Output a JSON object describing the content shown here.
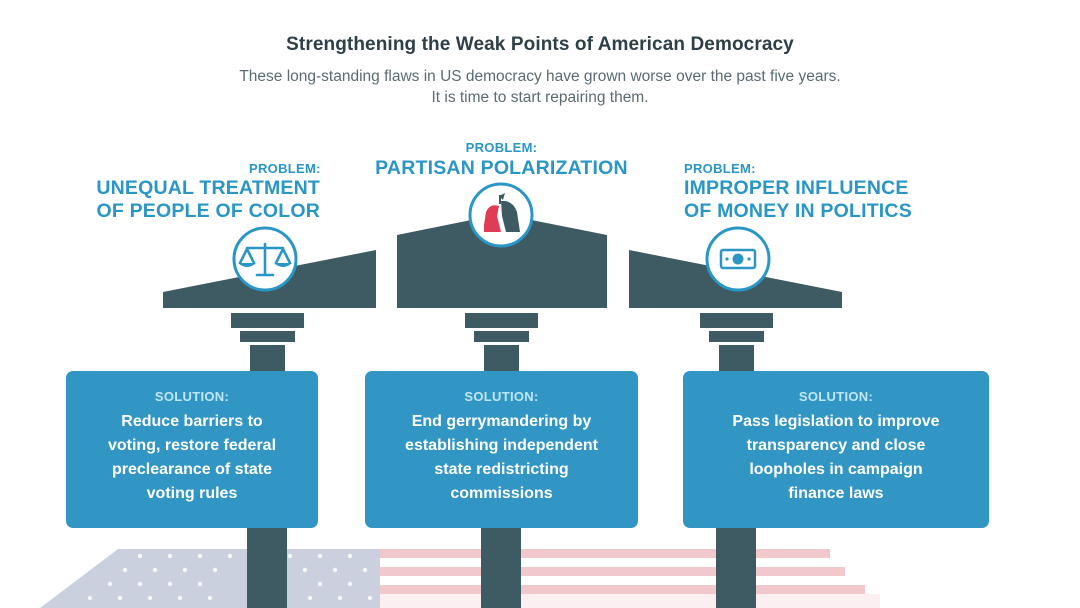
{
  "header": {
    "title": "Strengthening the Weak Points of American Democracy",
    "subtitle_lines": [
      "These long-standing flaws in US democracy have grown worse over the past five years.",
      "It is time to start repairing them."
    ]
  },
  "columns": [
    {
      "problem_label": "PROBLEM:",
      "problem_title_lines": [
        "UNEQUAL TREATMENT",
        "OF PEOPLE OF COLOR"
      ],
      "icon": "scales-of-justice-icon",
      "solution_label": "SOLUTION:",
      "solution_lines": [
        "Reduce barriers to",
        "voting, restore federal",
        "preclearance of state",
        "voting rules"
      ]
    },
    {
      "problem_label": "PROBLEM:",
      "problem_title_lines": [
        "PARTISAN POLARIZATION"
      ],
      "icon": "divided-elephant-donkey-icon",
      "solution_label": "SOLUTION:",
      "solution_lines": [
        "End gerrymandering by",
        "establishing independent",
        "state redistricting",
        "commissions"
      ]
    },
    {
      "problem_label": "PROBLEM:",
      "problem_title_lines": [
        "IMPROPER INFLUENCE",
        "OF MONEY IN POLITICS"
      ],
      "icon": "dollar-bill-icon",
      "solution_label": "SOLUTION:",
      "solution_lines": [
        "Pass legislation to improve",
        "transparency and close",
        "loopholes in campaign",
        "finance laws"
      ]
    }
  ],
  "colors": {
    "accent_blue": "#2a96c6",
    "card_blue": "#3296c5",
    "slate": "#3e5a63",
    "icon_red": "#e03c56",
    "flag_red": "#e8a3a9",
    "flag_blue": "#b7c0d2"
  }
}
